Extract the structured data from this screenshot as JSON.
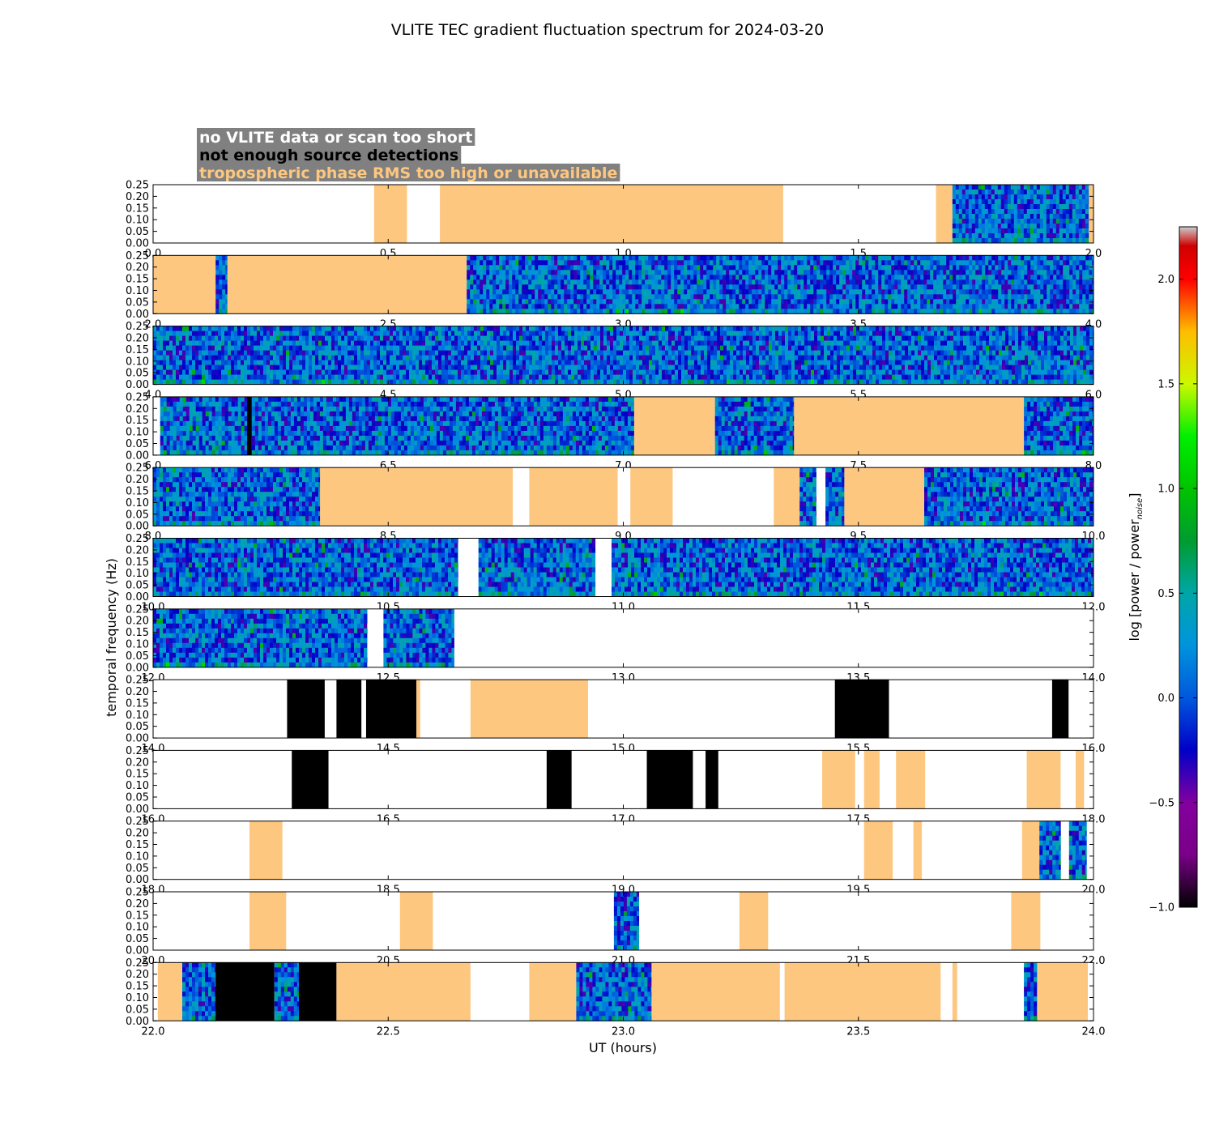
{
  "chart_data": {
    "type": "heatmap",
    "title": "VLITE TEC gradient fluctuation spectrum for 2024-03-20",
    "xlabel": "UT (hours)",
    "ylabel": "temporal frequency (Hz)",
    "colorbar_label": "log [power / power",
    "colorbar_label_sub": "noise",
    "colorbar_label_end": "]",
    "colorbar_range": [
      -1.0,
      2.25
    ],
    "colorbar_ticks": [
      "2.0",
      "1.5",
      "1.0",
      "0.5",
      "0.0",
      "−0.5",
      "−1.0"
    ],
    "colorbar_tick_values": [
      2.0,
      1.5,
      1.0,
      0.5,
      0.0,
      -0.5,
      -1.0
    ],
    "colormap": "nipy_spectral",
    "ylim": [
      0.0,
      0.25
    ],
    "y_ticks": [
      "0.00",
      "0.05",
      "0.10",
      "0.15",
      "0.20",
      "0.25"
    ],
    "y_tick_values": [
      0.0,
      0.05,
      0.1,
      0.15,
      0.2,
      0.25
    ],
    "legend": [
      {
        "text": "no VLITE data or scan too short",
        "color": "#ffffff"
      },
      {
        "text": "not enough source detections",
        "color": "#000000"
      },
      {
        "text": "tropospheric phase RMS too high or unavailable",
        "color": "#fdc77f"
      }
    ],
    "legend_box_color": "#808080",
    "flag_colors": {
      "none": "#ffffff",
      "no_det": "#000000",
      "tropo": "#fdc77f"
    },
    "panels": [
      {
        "range": [
          0,
          2
        ],
        "ticks": [
          "0.0",
          "0.5",
          "1.0",
          "1.5",
          "2.0"
        ],
        "segments": [
          {
            "start": 0.47,
            "end": 0.54,
            "flag": "tropo"
          },
          {
            "start": 0.61,
            "end": 1.34,
            "flag": "tropo"
          },
          {
            "start": 1.665,
            "end": 1.7,
            "flag": "tropo"
          },
          {
            "start": 1.7,
            "end": 1.99,
            "flag": "data"
          },
          {
            "start": 1.99,
            "end": 2.0,
            "flag": "tropo"
          }
        ]
      },
      {
        "range": [
          2,
          4
        ],
        "ticks": [
          "2.0",
          "2.5",
          "3.0",
          "3.5",
          "4.0"
        ],
        "segments": [
          {
            "start": 2.0,
            "end": 2.133,
            "flag": "tropo"
          },
          {
            "start": 2.133,
            "end": 2.158,
            "flag": "data"
          },
          {
            "start": 2.158,
            "end": 2.667,
            "flag": "tropo"
          },
          {
            "start": 2.667,
            "end": 4.0,
            "flag": "data"
          }
        ]
      },
      {
        "range": [
          4,
          6
        ],
        "ticks": [
          "4.0",
          "4.5",
          "5.0",
          "5.5",
          "6.0"
        ],
        "segments": [
          {
            "start": 4.0,
            "end": 6.0,
            "flag": "data"
          }
        ]
      },
      {
        "range": [
          6,
          8
        ],
        "ticks": [
          "6.0",
          "6.5",
          "7.0",
          "7.5",
          "8.0"
        ],
        "segments": [
          {
            "start": 6.015,
            "end": 6.2,
            "flag": "data"
          },
          {
            "start": 6.2,
            "end": 6.21,
            "flag": "no_det"
          },
          {
            "start": 6.21,
            "end": 7.023,
            "flag": "data"
          },
          {
            "start": 7.023,
            "end": 7.195,
            "flag": "tropo"
          },
          {
            "start": 7.195,
            "end": 7.363,
            "flag": "data"
          },
          {
            "start": 7.363,
            "end": 7.852,
            "flag": "tropo"
          },
          {
            "start": 7.852,
            "end": 8.0,
            "flag": "data"
          }
        ]
      },
      {
        "range": [
          8,
          10
        ],
        "ticks": [
          "8.0",
          "8.5",
          "9.0",
          "9.5",
          "10.0"
        ],
        "segments": [
          {
            "start": 8.0,
            "end": 8.355,
            "flag": "data"
          },
          {
            "start": 8.355,
            "end": 8.765,
            "flag": "tropo"
          },
          {
            "start": 8.8,
            "end": 8.988,
            "flag": "tropo"
          },
          {
            "start": 9.015,
            "end": 9.105,
            "flag": "tropo"
          },
          {
            "start": 9.32,
            "end": 9.375,
            "flag": "tropo"
          },
          {
            "start": 9.375,
            "end": 9.41,
            "flag": "data"
          },
          {
            "start": 9.43,
            "end": 9.47,
            "flag": "data"
          },
          {
            "start": 9.47,
            "end": 9.64,
            "flag": "tropo"
          },
          {
            "start": 9.64,
            "end": 10.0,
            "flag": "data"
          }
        ]
      },
      {
        "range": [
          10,
          12
        ],
        "ticks": [
          "10.0",
          "10.5",
          "11.0",
          "11.5",
          "12.0"
        ],
        "segments": [
          {
            "start": 10.0,
            "end": 10.648,
            "flag": "data"
          },
          {
            "start": 10.692,
            "end": 10.94,
            "flag": "data"
          },
          {
            "start": 10.975,
            "end": 12.0,
            "flag": "data"
          }
        ]
      },
      {
        "range": [
          12,
          14
        ],
        "ticks": [
          "12.0",
          "12.5",
          "13.0",
          "13.5",
          "14.0"
        ],
        "segments": [
          {
            "start": 12.0,
            "end": 12.455,
            "flag": "data"
          },
          {
            "start": 12.49,
            "end": 12.64,
            "flag": "data"
          }
        ]
      },
      {
        "range": [
          14,
          16
        ],
        "ticks": [
          "14.0",
          "14.5",
          "15.0",
          "15.5",
          "16.0"
        ],
        "segments": [
          {
            "start": 14.285,
            "end": 14.365,
            "flag": "no_det"
          },
          {
            "start": 14.39,
            "end": 14.443,
            "flag": "no_det"
          },
          {
            "start": 14.453,
            "end": 14.56,
            "flag": "no_det"
          },
          {
            "start": 14.56,
            "end": 14.568,
            "flag": "tropo"
          },
          {
            "start": 14.675,
            "end": 14.925,
            "flag": "tropo"
          },
          {
            "start": 15.45,
            "end": 15.565,
            "flag": "no_det"
          },
          {
            "start": 15.912,
            "end": 15.947,
            "flag": "no_det"
          }
        ]
      },
      {
        "range": [
          16,
          18
        ],
        "ticks": [
          "16.0",
          "16.5",
          "17.0",
          "17.5",
          "18.0"
        ],
        "segments": [
          {
            "start": 16.295,
            "end": 16.373,
            "flag": "no_det"
          },
          {
            "start": 16.837,
            "end": 16.89,
            "flag": "no_det"
          },
          {
            "start": 17.05,
            "end": 17.148,
            "flag": "no_det"
          },
          {
            "start": 17.175,
            "end": 17.202,
            "flag": "no_det"
          },
          {
            "start": 17.423,
            "end": 17.493,
            "flag": "tropo"
          },
          {
            "start": 17.512,
            "end": 17.545,
            "flag": "tropo"
          },
          {
            "start": 17.58,
            "end": 17.642,
            "flag": "tropo"
          },
          {
            "start": 17.858,
            "end": 17.93,
            "flag": "tropo"
          },
          {
            "start": 17.962,
            "end": 17.98,
            "flag": "tropo"
          }
        ]
      },
      {
        "range": [
          18,
          20
        ],
        "ticks": [
          "18.0",
          "18.5",
          "19.0",
          "19.5",
          "20.0"
        ],
        "segments": [
          {
            "start": 18.205,
            "end": 18.275,
            "flag": "tropo"
          },
          {
            "start": 19.512,
            "end": 19.573,
            "flag": "tropo"
          },
          {
            "start": 19.617,
            "end": 19.635,
            "flag": "tropo"
          },
          {
            "start": 19.848,
            "end": 19.885,
            "flag": "tropo"
          },
          {
            "start": 19.885,
            "end": 19.93,
            "flag": "data"
          },
          {
            "start": 19.948,
            "end": 19.985,
            "flag": "data"
          }
        ]
      },
      {
        "range": [
          20,
          22
        ],
        "ticks": [
          "20.0",
          "20.5",
          "21.0",
          "21.5",
          "22.0"
        ],
        "segments": [
          {
            "start": 20.205,
            "end": 20.283,
            "flag": "tropo"
          },
          {
            "start": 20.525,
            "end": 20.595,
            "flag": "tropo"
          },
          {
            "start": 20.98,
            "end": 21.033,
            "flag": "data"
          },
          {
            "start": 21.247,
            "end": 21.308,
            "flag": "tropo"
          },
          {
            "start": 21.825,
            "end": 21.887,
            "flag": "tropo"
          }
        ]
      },
      {
        "range": [
          22,
          24
        ],
        "ticks": [
          "22.0",
          "22.5",
          "23.0",
          "23.5",
          "24.0"
        ],
        "segments": [
          {
            "start": 22.01,
            "end": 22.062,
            "flag": "tropo"
          },
          {
            "start": 22.062,
            "end": 22.133,
            "flag": "data"
          },
          {
            "start": 22.133,
            "end": 22.258,
            "flag": "no_det"
          },
          {
            "start": 22.258,
            "end": 22.31,
            "flag": "data"
          },
          {
            "start": 22.31,
            "end": 22.39,
            "flag": "no_det"
          },
          {
            "start": 22.39,
            "end": 22.675,
            "flag": "tropo"
          },
          {
            "start": 22.8,
            "end": 22.9,
            "flag": "tropo"
          },
          {
            "start": 22.9,
            "end": 23.06,
            "flag": "data"
          },
          {
            "start": 23.06,
            "end": 23.333,
            "flag": "tropo"
          },
          {
            "start": 23.343,
            "end": 23.675,
            "flag": "tropo"
          },
          {
            "start": 23.7,
            "end": 23.71,
            "flag": "tropo"
          },
          {
            "start": 23.852,
            "end": 23.88,
            "flag": "data"
          },
          {
            "start": 23.88,
            "end": 23.988,
            "flag": "tropo"
          }
        ]
      }
    ]
  }
}
